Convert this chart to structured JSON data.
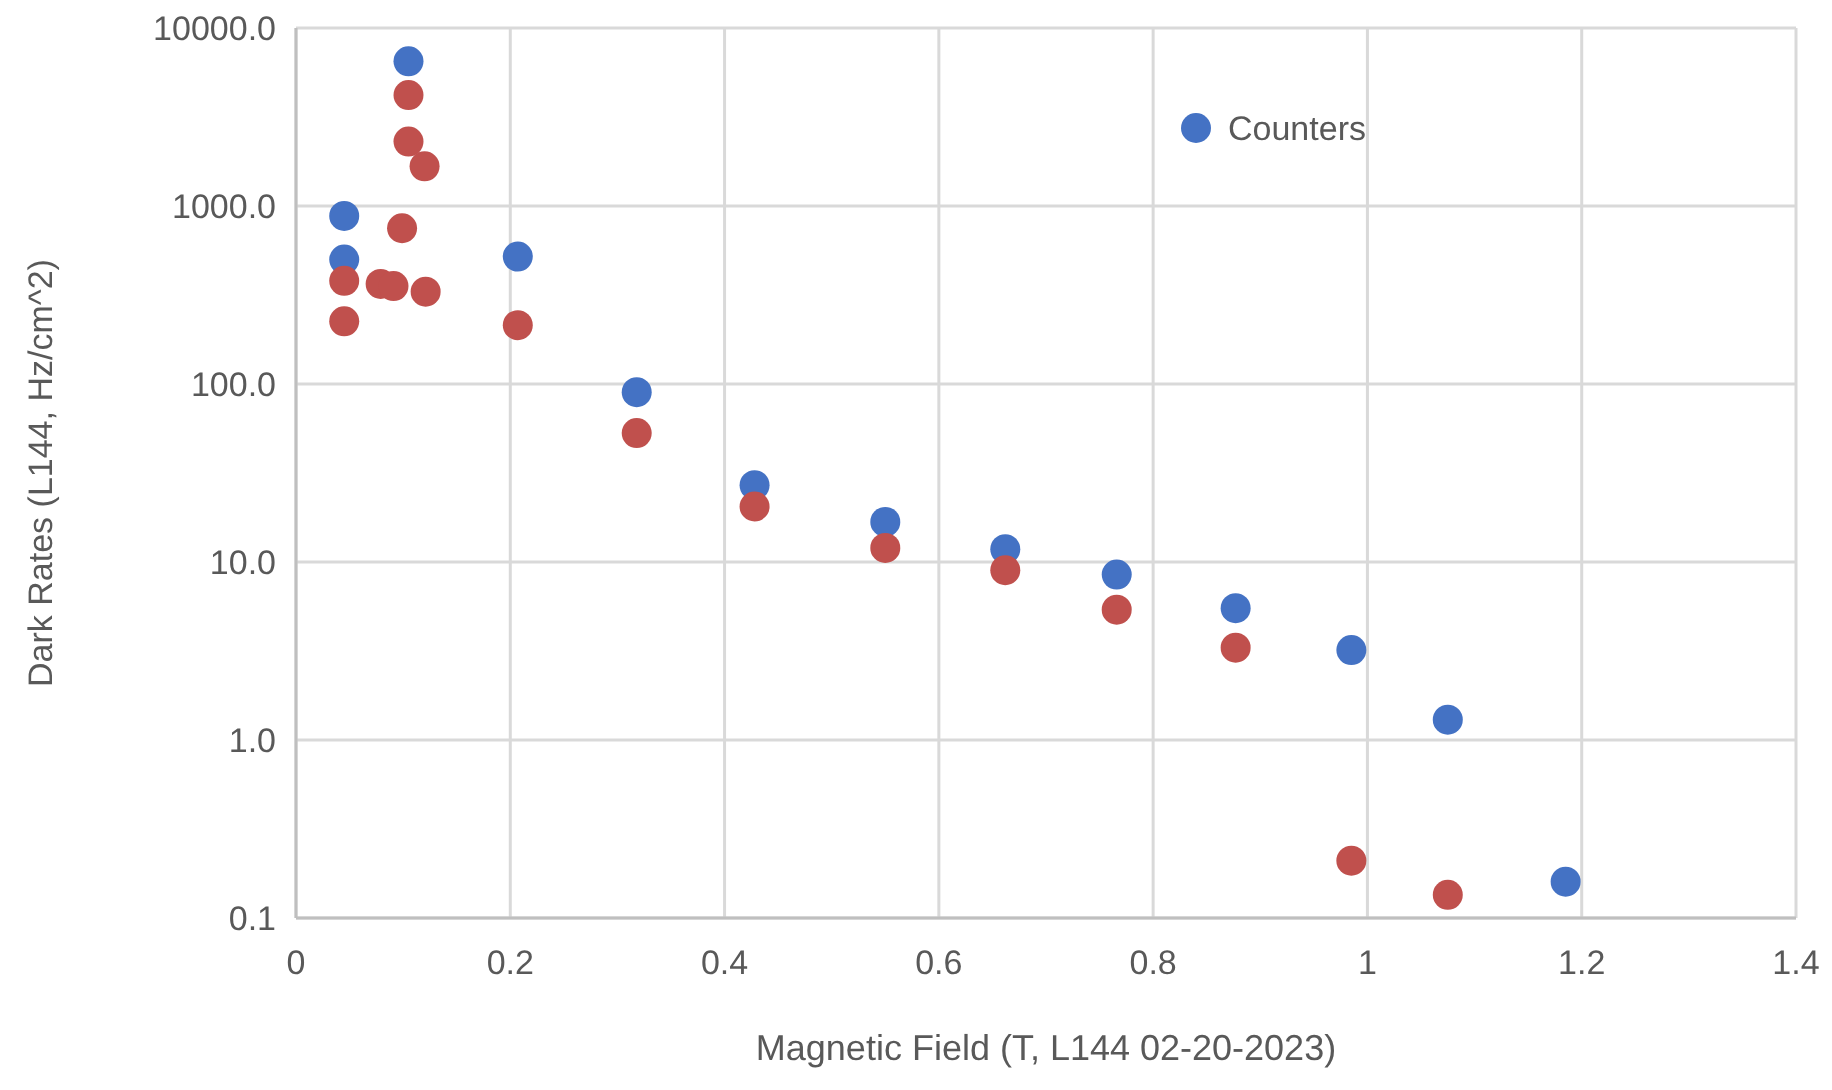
{
  "chart_data": {
    "type": "scatter",
    "xlabel": "Magnetic Field (T, L144 02-20-2023)",
    "ylabel": "Dark Rates (L144, Hz/cm^2)",
    "log": "y",
    "grid": true,
    "legend": "top right",
    "marker": "circle",
    "xlim": [
      0,
      1.4
    ],
    "xticks": [
      0,
      0.2,
      0.4,
      0.6,
      0.8,
      1,
      1.2,
      1.4
    ],
    "ylim": [
      0.1,
      10000
    ],
    "yticks": [
      {
        "value": 0.1,
        "label": "0.1"
      },
      {
        "value": 1,
        "label": "1.0"
      },
      {
        "value": 10,
        "label": "10.0"
      },
      {
        "value": 100,
        "label": "100.0"
      },
      {
        "value": 1000,
        "label": "1000.0"
      },
      {
        "value": 10000,
        "label": "10000.0"
      }
    ],
    "series": [
      {
        "name": "Counters",
        "color": "#4472c4",
        "x": [
          0.105,
          0.045,
          0.045,
          0.207,
          0.318,
          0.428,
          0.55,
          0.662,
          0.766,
          0.877,
          0.985,
          1.075,
          1.185
        ],
        "values": [
          6500,
          880,
          500,
          520,
          90,
          27,
          16.8,
          11.8,
          8.5,
          5.5,
          3.2,
          1.3,
          0.16
        ]
      },
      {
        "color": "#c0504d",
        "x": [
          0.105,
          0.105,
          0.12,
          0.099,
          0.045,
          0.045,
          0.079,
          0.091,
          0.121,
          0.207,
          0.318,
          0.428,
          0.55,
          0.662,
          0.766,
          0.877,
          0.985,
          1.075
        ],
        "values": [
          4200,
          2300,
          1670,
          750,
          380,
          225,
          365,
          355,
          330,
          214,
          53,
          20.5,
          12,
          9,
          5.4,
          3.3,
          0.21,
          0.135
        ]
      }
    ]
  }
}
